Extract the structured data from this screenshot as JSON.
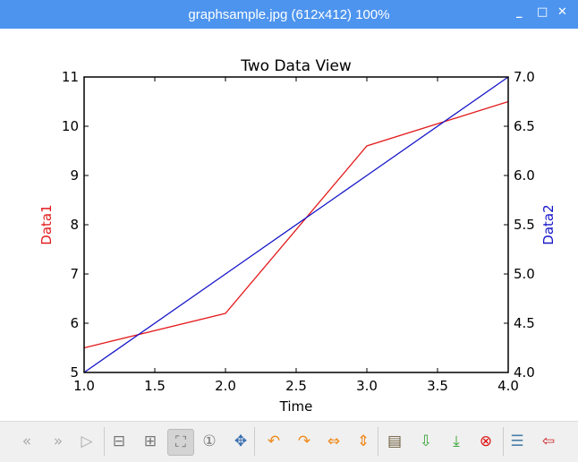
{
  "window": {
    "title": "graphsample.jpg (612x412) 100%",
    "minimize": "_",
    "maximize": "□",
    "close": "✕"
  },
  "chart_data": {
    "type": "line",
    "title": "Two Data View",
    "xlabel": "Time",
    "ylabel": "Data1",
    "y2label": "Data2",
    "xlim": [
      1.0,
      4.0
    ],
    "ylim": [
      5,
      11
    ],
    "y2lim": [
      4.0,
      7.0
    ],
    "xticks": [
      "1.0",
      "1.5",
      "2.0",
      "2.5",
      "3.0",
      "3.5",
      "4.0"
    ],
    "yticks": [
      "5",
      "6",
      "7",
      "8",
      "9",
      "10",
      "11"
    ],
    "y2ticks": [
      "4.0",
      "4.5",
      "5.0",
      "5.5",
      "6.0",
      "6.5",
      "7.0"
    ],
    "x": [
      1,
      2,
      3,
      4
    ],
    "series": [
      {
        "axis": "left",
        "color": "#e31a1c",
        "values": [
          5.5,
          6.2,
          9.6,
          10.5
        ]
      },
      {
        "axis": "right",
        "color": "#1515c8",
        "values": [
          4.0,
          5.0,
          6.0,
          7.0
        ]
      }
    ],
    "grid": false
  },
  "toolbar": {
    "buttons": [
      {
        "icon": "previous-icon",
        "glyph": "«",
        "color": "#aaa"
      },
      {
        "icon": "next-icon",
        "glyph": "»",
        "color": "#aaa"
      },
      {
        "icon": "slideshow-play-icon",
        "glyph": "▷",
        "color": "#aaa"
      },
      {
        "icon": "zoom-out-icon",
        "glyph": "⊟",
        "color": "#777"
      },
      {
        "icon": "zoom-in-icon",
        "glyph": "⊞",
        "color": "#777"
      },
      {
        "icon": "zoom-fit-icon",
        "glyph": "⛶",
        "color": "#777",
        "active": true
      },
      {
        "icon": "original-size-icon",
        "glyph": "①",
        "color": "#777"
      },
      {
        "icon": "fullscreen-icon",
        "glyph": "✥",
        "color": "#3a6fb0"
      },
      {
        "icon": "rotate-left-icon",
        "glyph": "↶",
        "color": "#f08a1c"
      },
      {
        "icon": "rotate-right-icon",
        "glyph": "↷",
        "color": "#f08a1c"
      },
      {
        "icon": "flip-horizontal-icon",
        "glyph": "⇔",
        "color": "#f08a1c"
      },
      {
        "icon": "flip-vertical-icon",
        "glyph": "⇕",
        "color": "#f08a1c"
      },
      {
        "icon": "open-file-icon",
        "glyph": "▤",
        "color": "#6b5a3a"
      },
      {
        "icon": "save-icon",
        "glyph": "⇩",
        "color": "#3aa53a"
      },
      {
        "icon": "save-as-icon",
        "glyph": "⤓",
        "color": "#3aa53a"
      },
      {
        "icon": "delete-icon",
        "glyph": "⊗",
        "color": "#d11"
      },
      {
        "icon": "preferences-icon",
        "glyph": "☰",
        "color": "#4a7fa8"
      },
      {
        "icon": "quit-icon",
        "glyph": "⇦",
        "color": "#c22"
      }
    ]
  }
}
